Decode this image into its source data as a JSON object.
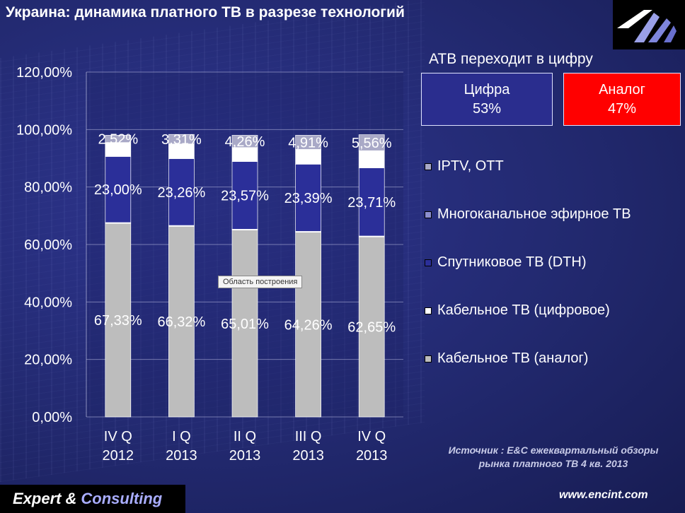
{
  "slide": {
    "title": "Украина: динамика платного ТВ в разрезе технологий",
    "callout_title": "АТВ переходит в цифру",
    "digital": {
      "label": "Цифра",
      "value": "53%",
      "color": "#2a2d8e"
    },
    "analog": {
      "label": "Аналог",
      "value": "47%",
      "color": "#ff0000"
    },
    "tooltip": "Область построения",
    "source_line1": "Источник : E&C ежеквартальный обзоры",
    "source_line2": "рынка платного ТВ 4 кв. 2013",
    "brand_part1": "Expert",
    "brand_amp": "&",
    "brand_part2": "Consulting",
    "website": "www.encint.com"
  },
  "chart_data": {
    "type": "bar",
    "stacked": true,
    "title": "",
    "xlabel": "",
    "ylabel": "",
    "ylim": [
      0,
      120
    ],
    "ytick_values": [
      0,
      20,
      40,
      60,
      80,
      100,
      120
    ],
    "yticks": [
      "0,00%",
      "20,00%",
      "40,00%",
      "60,00%",
      "80,00%",
      "100,00%",
      "120,00%"
    ],
    "grid": true,
    "legend_position": "right",
    "categories": [
      "IV Q 2012",
      "I Q 2013",
      "II Q 2013",
      "III Q 2013",
      "IV Q 2013"
    ],
    "category_lines": [
      [
        "IV Q",
        "2012"
      ],
      [
        "I Q",
        "2013"
      ],
      [
        "II Q",
        "2013"
      ],
      [
        "III Q",
        "2013"
      ],
      [
        "IV Q",
        "2013"
      ]
    ],
    "series": [
      {
        "name": "Кабельное ТВ (аналог)",
        "color": "#bdbdbd",
        "values": [
          67.33,
          66.32,
          65.01,
          64.26,
          62.65
        ],
        "labels": [
          "67,33%",
          "66,32%",
          "65,01%",
          "64,26%",
          "62,65%"
        ]
      },
      {
        "name": "Кабельное ТВ (цифровое)",
        "color": "#ffffff",
        "values": [
          0.3,
          0.3,
          0.3,
          0.3,
          0.3
        ],
        "labels": [
          "",
          "",
          "",
          "",
          ""
        ]
      },
      {
        "name": "Спутниковое ТВ (DTH)",
        "color": "#2b2f99",
        "values": [
          23.0,
          23.26,
          23.57,
          23.39,
          23.71
        ],
        "labels": [
          "23,00%",
          "23,26%",
          "23,57%",
          "23,39%",
          "23,71%"
        ]
      },
      {
        "name": "Многоканальное эфирное ТВ",
        "color": "#ffffff",
        "values": [
          4.85,
          5.11,
          4.86,
          5.14,
          5.98
        ],
        "labels": [
          "",
          "",
          "",
          "",
          ""
        ]
      },
      {
        "name": "IPTV, OTT",
        "color": "#a9a9c7",
        "values": [
          2.52,
          3.31,
          4.26,
          4.91,
          5.56
        ],
        "labels": [
          "2,52%",
          "3,31%",
          "4,26%",
          "4,91%",
          "5,56%"
        ]
      }
    ],
    "legend_order": [
      "IPTV, OTT",
      "Многоканальное эфирное ТВ",
      "Спутниковое ТВ (DTH)",
      "Кабельное ТВ (цифровое)",
      "Кабельное ТВ (аналог)"
    ],
    "legend_colors": [
      "#a9a9c7",
      "#8c8fcf",
      "#2b2f99",
      "#ffffff",
      "#bdbdbd"
    ]
  }
}
